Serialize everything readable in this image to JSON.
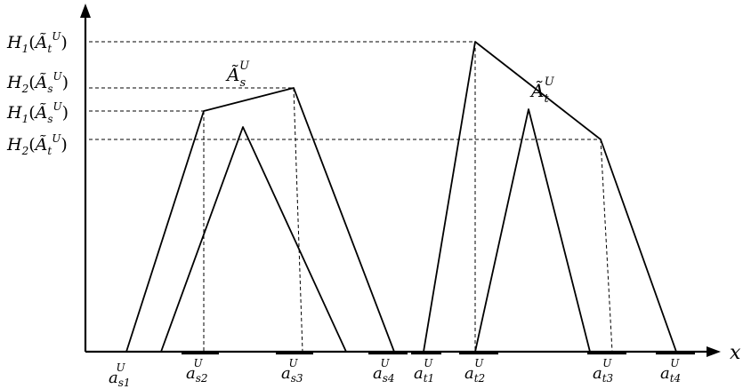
{
  "figure": {
    "x_axis_label": "x",
    "y_labels": [
      {
        "func": "H",
        "sub": "1",
        "set": "Ã",
        "set_sub": "t",
        "sup": "U"
      },
      {
        "func": "H",
        "sub": "2",
        "set": "Ã",
        "set_sub": "s",
        "sup": "U"
      },
      {
        "func": "H",
        "sub": "1",
        "set": "Ã",
        "set_sub": "s",
        "sup": "U"
      },
      {
        "func": "H",
        "sub": "2",
        "set": "Ã",
        "set_sub": "t",
        "sup": "U"
      }
    ],
    "x_labels": [
      {
        "base": "a",
        "sub": "s1",
        "sup": "U"
      },
      {
        "base": "a",
        "sub": "s2",
        "sup": "U"
      },
      {
        "base": "a",
        "sub": "s3",
        "sup": "U"
      },
      {
        "base": "a",
        "sub": "s4",
        "sup": "U"
      },
      {
        "base": "a",
        "sub": "t1",
        "sup": "U"
      },
      {
        "base": "a",
        "sub": "t2",
        "sup": "U"
      },
      {
        "base": "a",
        "sub": "t3",
        "sup": "U"
      },
      {
        "base": "a",
        "sub": "t4",
        "sup": "U"
      }
    ],
    "shape_labels": [
      {
        "base": "Ã",
        "sub": "s",
        "sup": "U"
      },
      {
        "base": "Ã",
        "sub": "t",
        "sup": "U"
      }
    ]
  }
}
